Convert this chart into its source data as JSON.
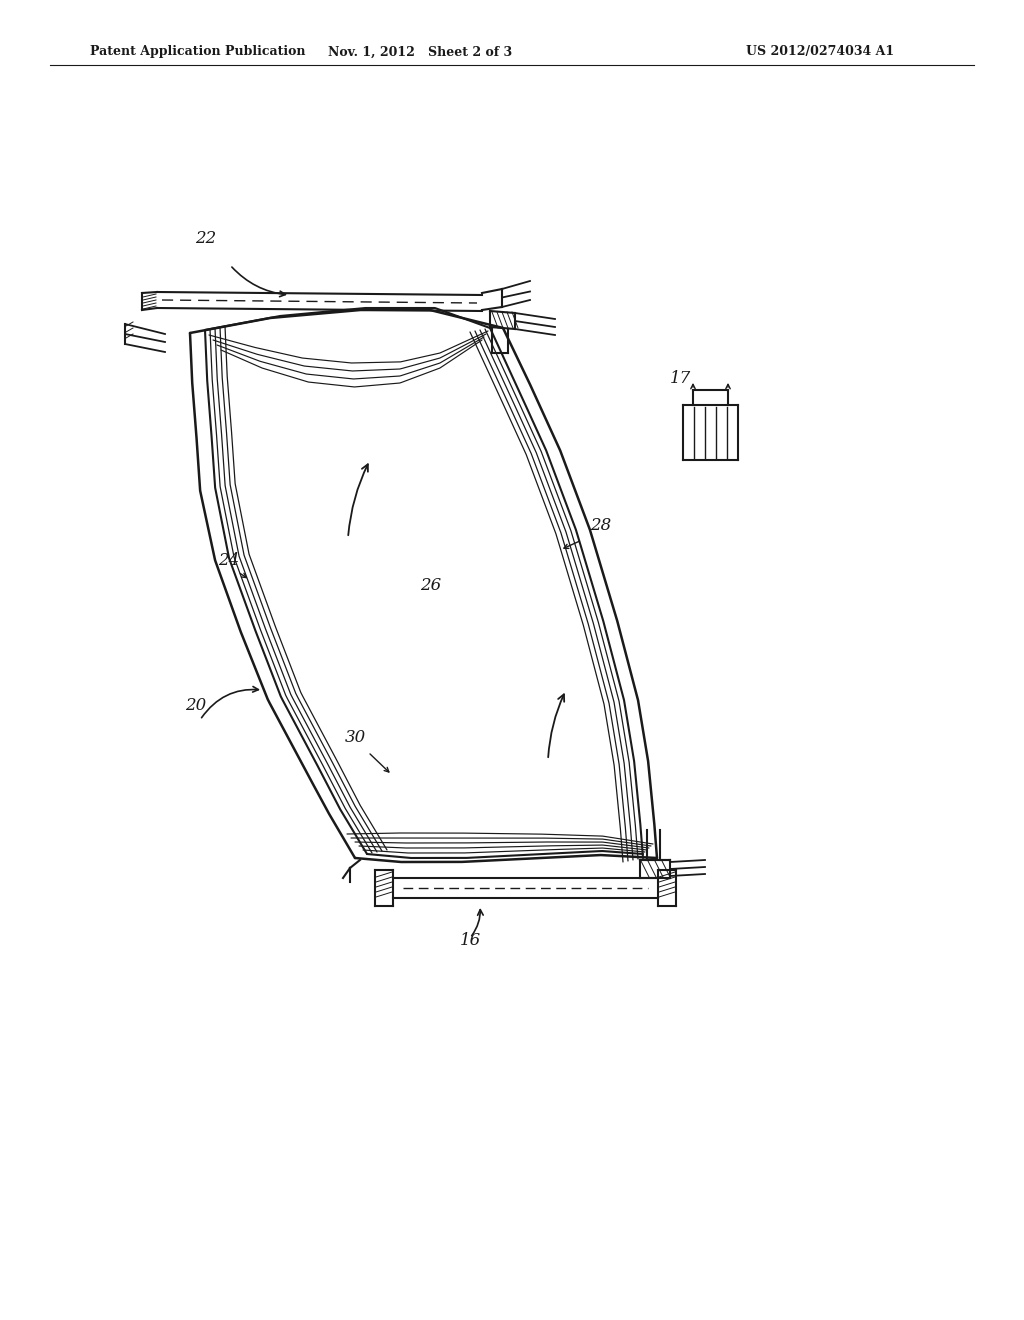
{
  "title_left": "Patent Application Publication",
  "title_mid": "Nov. 1, 2012   Sheet 2 of 3",
  "title_right": "US 2012/0274034 A1",
  "bg_color": "#ffffff",
  "line_color": "#1a1a1a",
  "figsize": [
    10.24,
    13.2
  ],
  "dpi": 100
}
